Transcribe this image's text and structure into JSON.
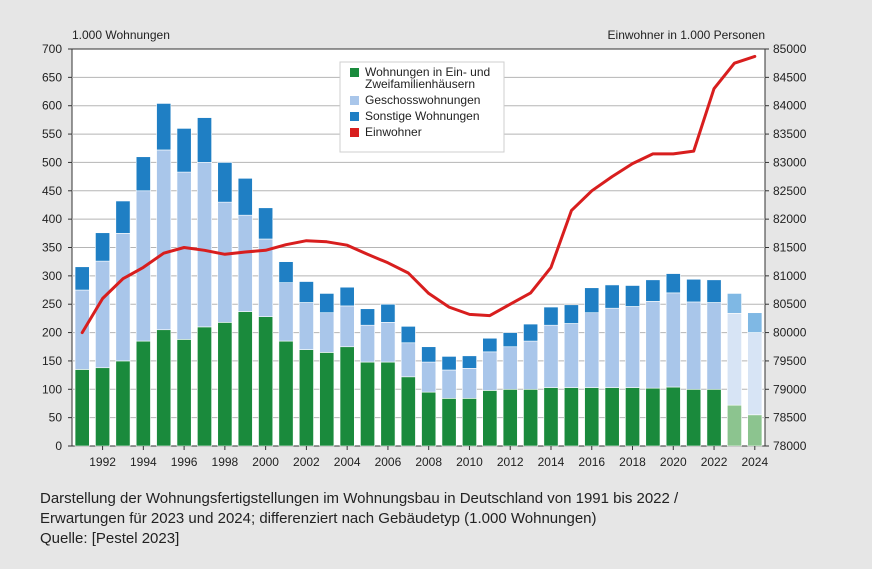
{
  "caption": {
    "line1": "Darstellung der Wohnungsfertigstellungen im Wohnungsbau in Deutschland von 1991 bis 2022 /",
    "line2": "Erwartungen für 2023 und 2024; differenziert nach Gebäudetyp (1.000 Wohnungen)",
    "line3": "Quelle: [Pestel 2023]"
  },
  "chart_data": {
    "type": "bar",
    "title": "",
    "ylabel_left": "1.000 Wohnungen",
    "ylabel_right": "Einwohner in 1.000 Personen",
    "ylim": [
      0,
      700
    ],
    "y2lim": [
      78000,
      85000
    ],
    "yticks": [
      "0",
      "50",
      "100",
      "150",
      "200",
      "250",
      "300",
      "350",
      "400",
      "450",
      "500",
      "550",
      "600",
      "650",
      "700"
    ],
    "y2ticks": [
      "78000",
      "78500",
      "79000",
      "79500",
      "80000",
      "80500",
      "81000",
      "81500",
      "82000",
      "82500",
      "83000",
      "83500",
      "84000",
      "84500",
      "85000"
    ],
    "xtick_labels": [
      "1992",
      "1994",
      "1996",
      "1998",
      "2000",
      "2002",
      "2004",
      "2006",
      "2008",
      "2010",
      "2012",
      "2014",
      "2016",
      "2018",
      "2020",
      "2022",
      "2024"
    ],
    "categories": [
      "1991",
      "1992",
      "1993",
      "1994",
      "1995",
      "1996",
      "1997",
      "1998",
      "1999",
      "2000",
      "2001",
      "2002",
      "2003",
      "2004",
      "2005",
      "2006",
      "2007",
      "2008",
      "2009",
      "2010",
      "2011",
      "2012",
      "2013",
      "2014",
      "2015",
      "2016",
      "2017",
      "2018",
      "2019",
      "2020",
      "2021",
      "2022",
      "2023",
      "2024"
    ],
    "forecast_years": [
      "2023",
      "2024"
    ],
    "series": [
      {
        "name": "Wohnungen in Ein- und Zweifamilienhäusern",
        "color": "#1a8a3c",
        "forecast_color": "#8cc48f",
        "values": [
          135,
          138,
          150,
          185,
          205,
          188,
          210,
          218,
          237,
          228,
          185,
          170,
          165,
          175,
          148,
          148,
          122,
          95,
          84,
          84,
          98,
          100,
          100,
          103,
          103,
          103,
          103,
          103,
          102,
          104,
          100,
          100,
          72,
          55
        ]
      },
      {
        "name": "Geschosswohnungen",
        "color": "#a9c6ea",
        "forecast_color": "#d7e4f5",
        "values": [
          140,
          188,
          225,
          265,
          317,
          295,
          290,
          212,
          170,
          137,
          103,
          83,
          70,
          72,
          65,
          70,
          60,
          53,
          50,
          53,
          68,
          75,
          85,
          110,
          113,
          132,
          140,
          143,
          153,
          166,
          154,
          153,
          162,
          145
        ]
      },
      {
        "name": "Sonstige Wohnungen",
        "color": "#1f7fc4",
        "forecast_color": "#7fb8e4",
        "values": [
          41,
          50,
          57,
          60,
          82,
          77,
          79,
          70,
          65,
          55,
          37,
          37,
          34,
          33,
          29,
          32,
          29,
          27,
          24,
          22,
          24,
          25,
          30,
          32,
          33,
          44,
          41,
          37,
          38,
          34,
          40,
          40,
          35,
          35
        ]
      },
      {
        "name": "Einwohner",
        "color": "#d81e1e",
        "type": "line",
        "axis": "right",
        "values": [
          80000,
          80600,
          80950,
          81150,
          81400,
          81500,
          81450,
          81380,
          81420,
          81450,
          81550,
          81620,
          81600,
          81540,
          81380,
          81230,
          81050,
          80690,
          80450,
          80320,
          80300,
          80500,
          80700,
          81150,
          82150,
          82500,
          82750,
          82980,
          83150,
          83150,
          83200,
          84300,
          84750,
          84870
        ]
      }
    ],
    "legend_position": "top-center",
    "grid": true
  }
}
